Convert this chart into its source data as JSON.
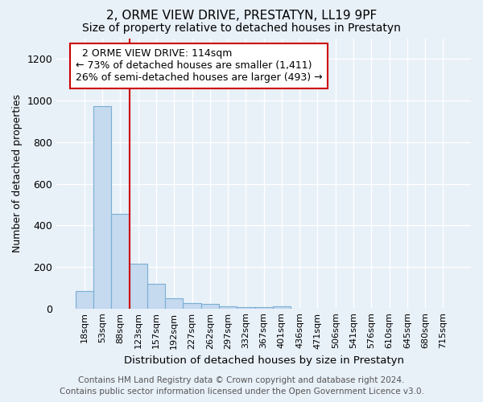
{
  "title_line1": "2, ORME VIEW DRIVE, PRESTATYN, LL19 9PF",
  "title_line2": "Size of property relative to detached houses in Prestatyn",
  "xlabel": "Distribution of detached houses by size in Prestatyn",
  "ylabel": "Number of detached properties",
  "bar_color": "#c5d9ef",
  "bar_edgecolor": "#7aafd4",
  "bar_linewidth": 0.8,
  "bin_labels": [
    "18sqm",
    "53sqm",
    "88sqm",
    "123sqm",
    "157sqm",
    "192sqm",
    "227sqm",
    "262sqm",
    "297sqm",
    "332sqm",
    "367sqm",
    "401sqm",
    "436sqm",
    "471sqm",
    "506sqm",
    "541sqm",
    "576sqm",
    "610sqm",
    "645sqm",
    "680sqm",
    "715sqm"
  ],
  "bar_heights": [
    85,
    975,
    455,
    215,
    120,
    50,
    25,
    22,
    12,
    8,
    8,
    10,
    0,
    0,
    0,
    0,
    0,
    0,
    0,
    0,
    0
  ],
  "red_line_x": 2.5,
  "ylim": [
    0,
    1300
  ],
  "yticks": [
    0,
    200,
    400,
    600,
    800,
    1000,
    1200
  ],
  "annotation_text": "  2 ORME VIEW DRIVE: 114sqm  \n← 73% of detached houses are smaller (1,411)\n26% of semi-detached houses are larger (493) →",
  "annotation_box_color": "#ffffff",
  "annotation_text_color": "#000000",
  "annotation_edgecolor": "#cc0000",
  "redline_color": "#cc0000",
  "background_color": "#e8f0f8",
  "grid_color": "#ffffff",
  "footer_text": "Contains HM Land Registry data © Crown copyright and database right 2024.\nContains public sector information licensed under the Open Government Licence v3.0.",
  "title_fontsize": 11,
  "subtitle_fontsize": 10,
  "annotation_fontsize": 9,
  "footer_fontsize": 7.5
}
